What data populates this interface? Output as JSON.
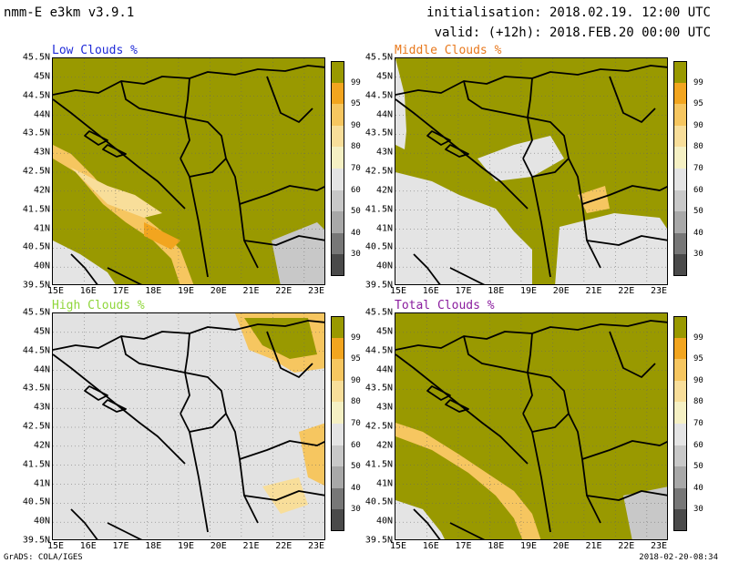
{
  "header": {
    "model": "nmm-E e3km v3.9.1",
    "initialisation": "initialisation: 2018.02.19. 12:00 UTC",
    "valid": "valid: (+12h): 2018.FEB.20 00:00 UTC"
  },
  "footer": {
    "left": "GrADS: COLA/IGES",
    "right": "2018-02-20-08:34"
  },
  "axes": {
    "lat_labels": [
      "45.5N",
      "45N",
      "44.5N",
      "44N",
      "43.5N",
      "43N",
      "42.5N",
      "42N",
      "41.5N",
      "41N",
      "40.5N",
      "40N",
      "39.5N"
    ],
    "lon_labels": [
      "15E",
      "16E",
      "17E",
      "18E",
      "19E",
      "20E",
      "21E",
      "22E",
      "23E"
    ]
  },
  "colorbar": {
    "labels": [
      "99",
      "95",
      "90",
      "80",
      "70",
      "60",
      "50",
      "40",
      "30"
    ],
    "colors": [
      "#999900",
      "#f2a51f",
      "#f6c660",
      "#f8de9a",
      "#f5f0c4",
      "#e4e4e4",
      "#c8c8c8",
      "#a8a8a8",
      "#777777",
      "#4a4a4a"
    ]
  },
  "panels": [
    {
      "title": "Low Clouds %",
      "title_color": "#1f2ad8"
    },
    {
      "title": "Middle Clouds %",
      "title_color": "#e8781c"
    },
    {
      "title": "High Clouds %",
      "title_color": "#8fd63a"
    },
    {
      "title": "Total Clouds %",
      "title_color": "#8a1c9e"
    }
  ],
  "legend_colors": {
    "olive": "#999900",
    "light_gray": "#e2e2e2",
    "orange": "#f2a51f"
  }
}
